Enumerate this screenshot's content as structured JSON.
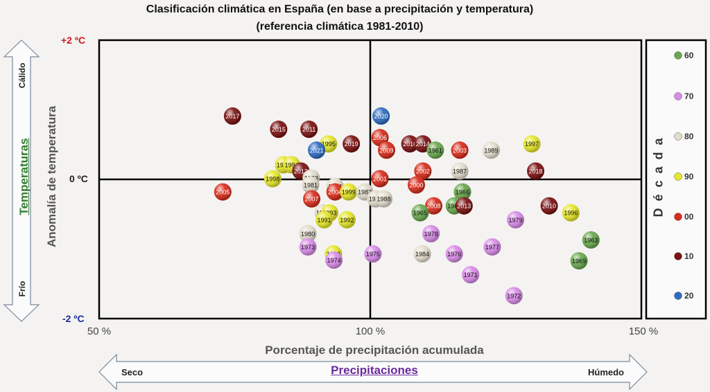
{
  "chart_data": {
    "type": "scatter",
    "title": "Clasificación climática en España (en base a precipitación y temperatura)",
    "subtitle": "(referencia climática 1981-2010)",
    "xlabel": "Porcentaje de precipitación acumulada",
    "ylabel": "Anomalía de temperatura",
    "xlim": [
      50,
      150
    ],
    "ylim": [
      -2,
      2
    ],
    "x_ticks": [
      "50 %",
      "100 %",
      "150 %"
    ],
    "y_ticks": [
      "+2 ºC",
      "0 ºC",
      "-2 ºC"
    ],
    "side_labels": {
      "temperatures": "Temperaturas",
      "warm": "Cálido",
      "cold": "Frío",
      "precipitations": "Precipitaciones",
      "dry": "Seco",
      "wet": "Húmedo",
      "legend_title": "Década"
    },
    "legend": [
      {
        "label": "60",
        "color": "#6aa84f"
      },
      {
        "label": "70",
        "color": "#d98ce8"
      },
      {
        "label": "80",
        "color": "#e2dccb"
      },
      {
        "label": "90",
        "color": "#e6e62a"
      },
      {
        "label": "00",
        "color": "#d82c1c"
      },
      {
        "label": "10",
        "color": "#7a1111"
      },
      {
        "label": "20",
        "color": "#2e6cc0"
      }
    ],
    "points": [
      {
        "label": "2017",
        "x": 74.6,
        "y": 0.91,
        "decade": "10"
      },
      {
        "label": "2015",
        "x": 83.1,
        "y": 0.72,
        "decade": "10"
      },
      {
        "label": "2011",
        "x": 88.7,
        "y": 0.72,
        "decade": "10"
      },
      {
        "label": "1995",
        "x": 92.3,
        "y": 0.51,
        "decade": "90"
      },
      {
        "label": "2019",
        "x": 96.5,
        "y": 0.51,
        "decade": "10"
      },
      {
        "label": "2021",
        "x": 90.1,
        "y": 0.42,
        "decade": "20"
      },
      {
        "label": "2020",
        "x": 102.0,
        "y": 0.91,
        "decade": "20"
      },
      {
        "label": "2006",
        "x": 101.8,
        "y": 0.6,
        "decade": "00"
      },
      {
        "label": "2009",
        "x": 103.0,
        "y": 0.42,
        "decade": "00"
      },
      {
        "label": "2016",
        "x": 107.3,
        "y": 0.51,
        "decade": "10"
      },
      {
        "label": "2014",
        "x": 109.7,
        "y": 0.51,
        "decade": "10"
      },
      {
        "label": "1961",
        "x": 112.0,
        "y": 0.42,
        "decade": "60"
      },
      {
        "label": "2003",
        "x": 116.5,
        "y": 0.42,
        "decade": "00"
      },
      {
        "label": "1989",
        "x": 122.3,
        "y": 0.42,
        "decade": "80"
      },
      {
        "label": "1997",
        "x": 129.8,
        "y": 0.51,
        "decade": "90"
      },
      {
        "label": "1990",
        "x": 84.0,
        "y": 0.21,
        "decade": "90"
      },
      {
        "label": "1994",
        "x": 85.5,
        "y": 0.21,
        "decade": "90"
      },
      {
        "label": "2012",
        "x": 87.2,
        "y": 0.12,
        "decade": "10"
      },
      {
        "label": "1998",
        "x": 82.0,
        "y": 0.01,
        "decade": "90"
      },
      {
        "label": "1983",
        "x": 89.1,
        "y": 0.02,
        "decade": "80"
      },
      {
        "label": "1981",
        "x": 89.0,
        "y": -0.08,
        "decade": "80"
      },
      {
        "label": "2002",
        "x": 109.7,
        "y": 0.12,
        "decade": "00"
      },
      {
        "label": "1987",
        "x": 116.5,
        "y": 0.12,
        "decade": "80"
      },
      {
        "label": "2018",
        "x": 130.5,
        "y": 0.12,
        "decade": "10"
      },
      {
        "label": "2001",
        "x": 101.8,
        "y": 0.01,
        "decade": "00"
      },
      {
        "label": "2000",
        "x": 108.5,
        "y": -0.08,
        "decade": "00"
      },
      {
        "label": "2005",
        "x": 72.8,
        "y": -0.18,
        "decade": "00"
      },
      {
        "label": "1984",
        "x": 93.5,
        "y": -0.1,
        "decade": "80"
      },
      {
        "label": "2004",
        "x": 93.5,
        "y": -0.18,
        "decade": "00"
      },
      {
        "label": "1999",
        "x": 96.0,
        "y": -0.18,
        "decade": "90"
      },
      {
        "label": "1982",
        "x": 99.0,
        "y": -0.18,
        "decade": "80"
      },
      {
        "label": "1986",
        "x": 101.0,
        "y": -0.28,
        "decade": "80"
      },
      {
        "label": "1988",
        "x": 102.5,
        "y": -0.28,
        "decade": "80"
      },
      {
        "label": "2007",
        "x": 89.2,
        "y": -0.28,
        "decade": "00"
      },
      {
        "label": "1966",
        "x": 117.0,
        "y": -0.18,
        "decade": "60"
      },
      {
        "label": "1968",
        "x": 115.5,
        "y": -0.38,
        "decade": "60"
      },
      {
        "label": "2008",
        "x": 111.7,
        "y": -0.38,
        "decade": "00"
      },
      {
        "label": "2013",
        "x": 117.3,
        "y": -0.38,
        "decade": "10"
      },
      {
        "label": "1965",
        "x": 109.2,
        "y": -0.48,
        "decade": "60"
      },
      {
        "label": "2010",
        "x": 133.0,
        "y": -0.38,
        "decade": "10"
      },
      {
        "label": "1996",
        "x": 137.0,
        "y": -0.48,
        "decade": "90"
      },
      {
        "label": "1979",
        "x": 126.8,
        "y": -0.58,
        "decade": "70"
      },
      {
        "label": "1985",
        "x": 91.3,
        "y": -0.48,
        "decade": "80"
      },
      {
        "label": "1993",
        "x": 92.5,
        "y": -0.48,
        "decade": "90"
      },
      {
        "label": "1991",
        "x": 91.5,
        "y": -0.58,
        "decade": "90"
      },
      {
        "label": "1992",
        "x": 95.7,
        "y": -0.58,
        "decade": "90"
      },
      {
        "label": "1978",
        "x": 111.2,
        "y": -0.78,
        "decade": "70"
      },
      {
        "label": "1980",
        "x": 88.5,
        "y": -0.78,
        "decade": "80"
      },
      {
        "label": "1963",
        "x": 140.7,
        "y": -0.87,
        "decade": "60"
      },
      {
        "label": "1973",
        "x": 88.5,
        "y": -0.97,
        "decade": "70"
      },
      {
        "label": "1977",
        "x": 122.5,
        "y": -0.97,
        "decade": "70"
      },
      {
        "label": "1975",
        "x": 100.5,
        "y": -1.07,
        "decade": "70"
      },
      {
        "label": "1984",
        "x": 109.6,
        "y": -1.07,
        "decade": "80"
      },
      {
        "label": "1976",
        "x": 115.5,
        "y": -1.07,
        "decade": "70"
      },
      {
        "label": "1993",
        "x": 93.2,
        "y": -1.07,
        "decade": "90"
      },
      {
        "label": "1974",
        "x": 93.3,
        "y": -1.16,
        "decade": "70"
      },
      {
        "label": "1969",
        "x": 138.5,
        "y": -1.17,
        "decade": "60"
      },
      {
        "label": "1971",
        "x": 118.5,
        "y": -1.37,
        "decade": "70"
      },
      {
        "label": "1972",
        "x": 126.5,
        "y": -1.67,
        "decade": "70"
      }
    ]
  }
}
